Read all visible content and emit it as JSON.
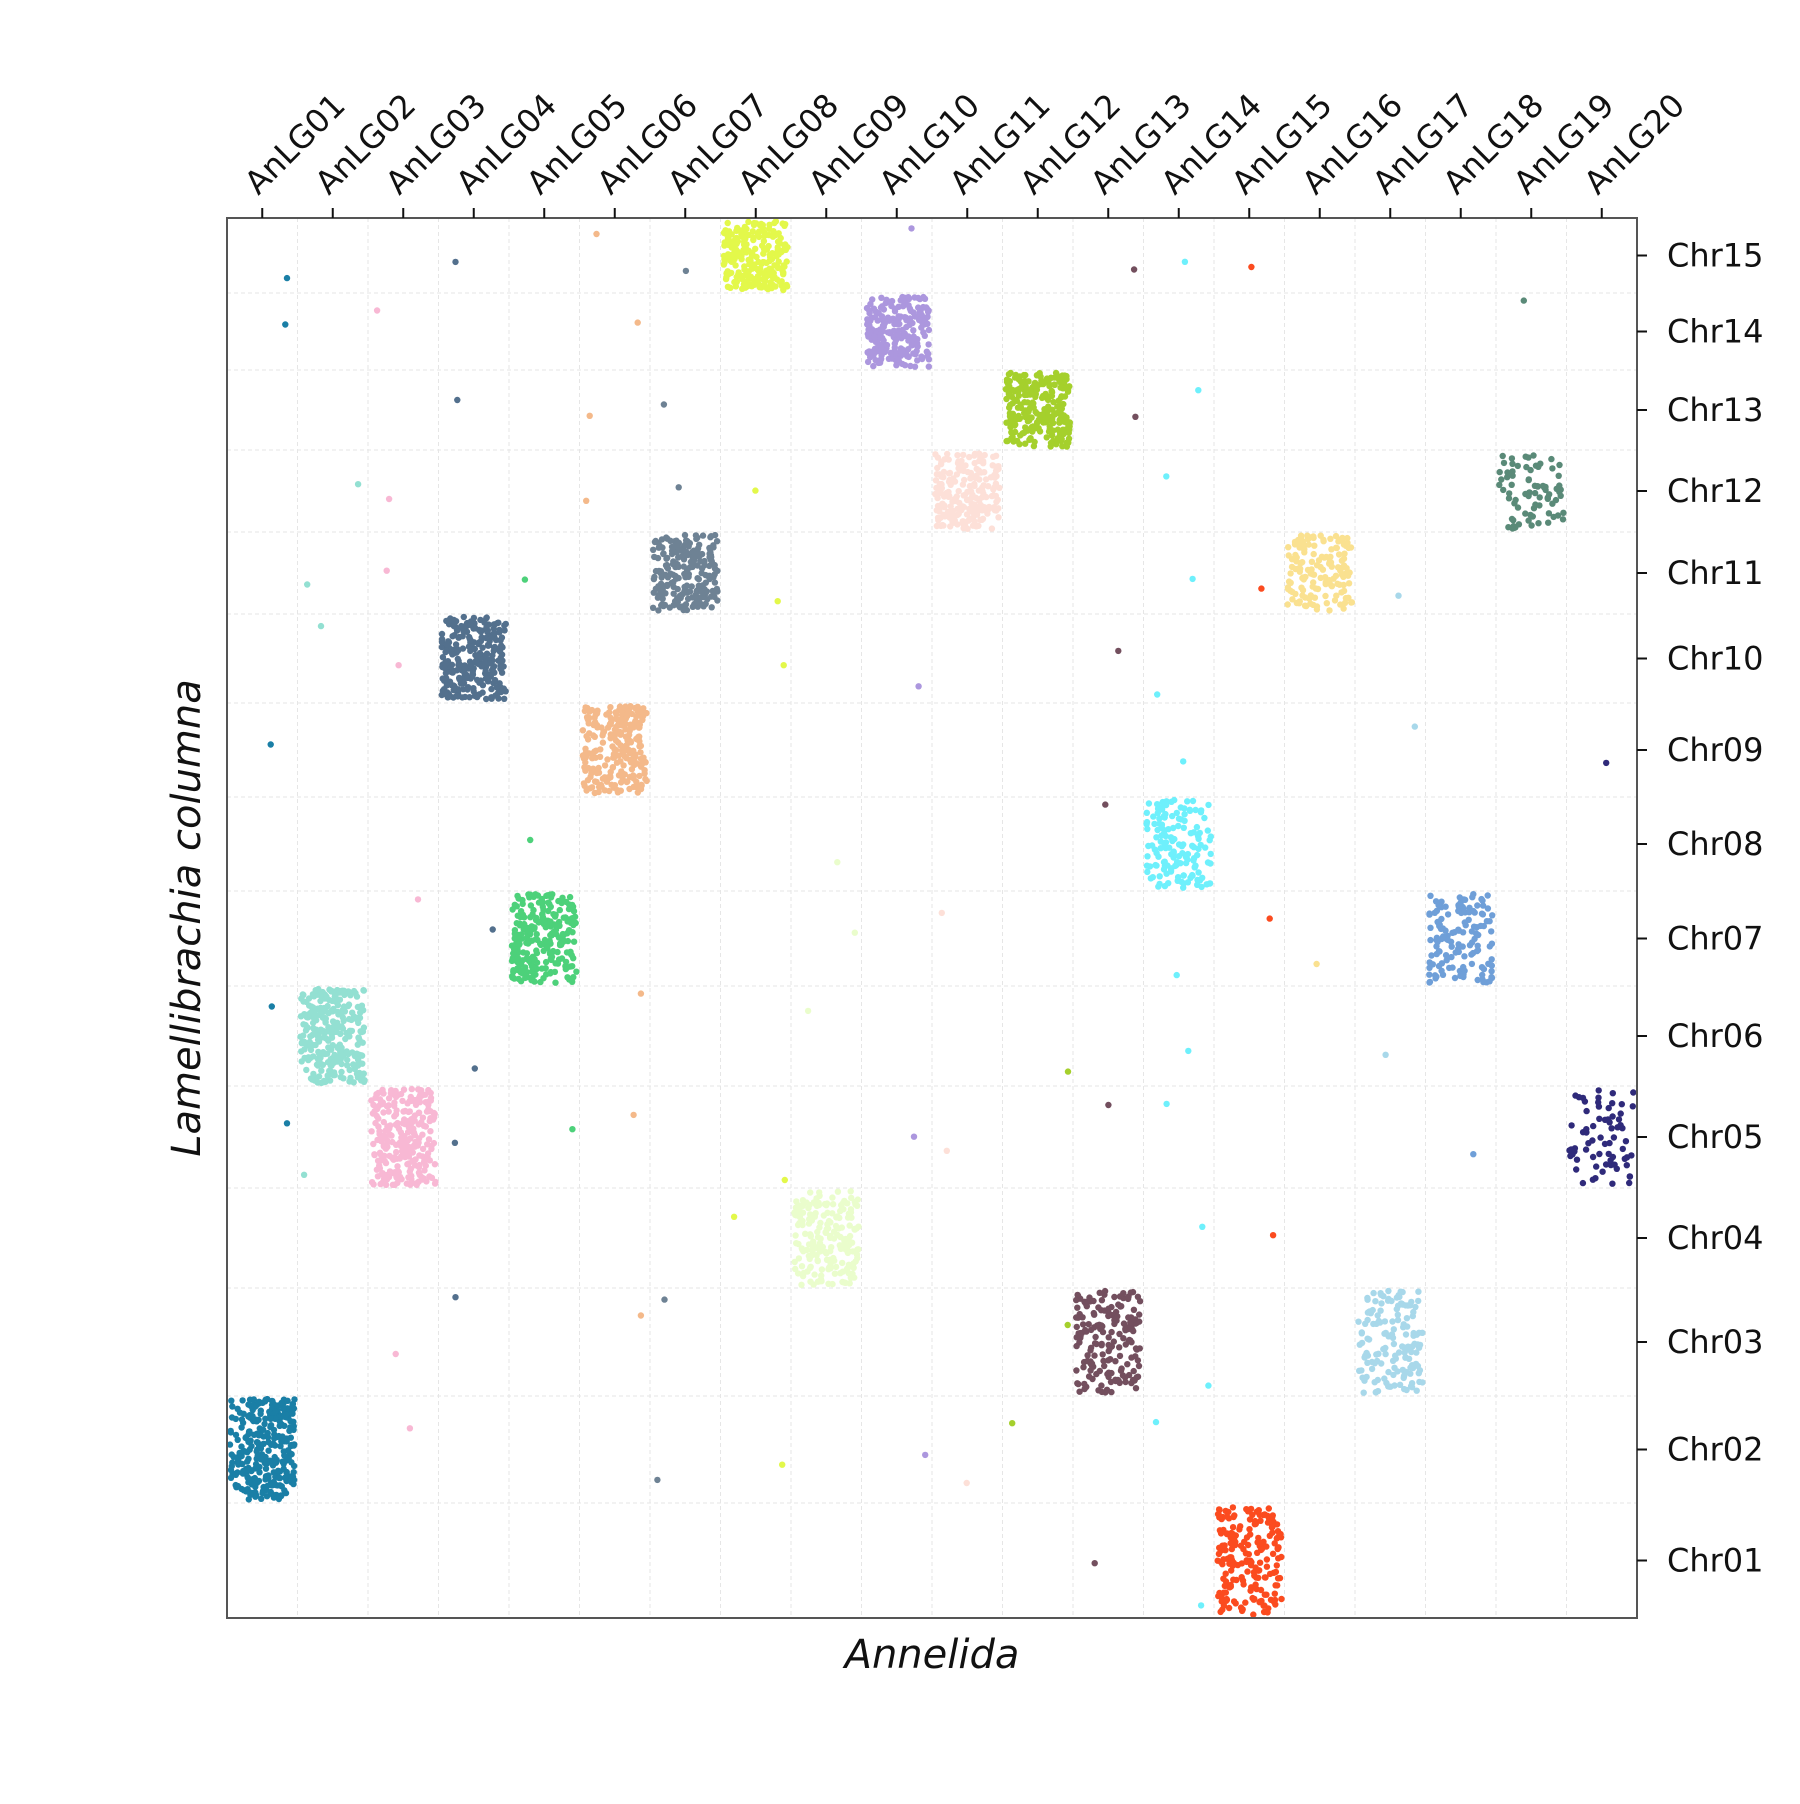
{
  "chart_data": {
    "type": "scatter",
    "title": "",
    "xlabel": "Annelida",
    "ylabel": "Lamellibrachia columna",
    "x_tick_position": "top",
    "y_tick_position": "right",
    "grid": true,
    "x_categories": [
      "AnLG01",
      "AnLG02",
      "AnLG03",
      "AnLG04",
      "AnLG05",
      "AnLG06",
      "AnLG07",
      "AnLG08",
      "AnLG09",
      "AnLG10",
      "AnLG11",
      "AnLG12",
      "AnLG13",
      "AnLG14",
      "AnLG15",
      "AnLG16",
      "AnLG17",
      "AnLG18",
      "AnLG19",
      "AnLG20"
    ],
    "y_categories": [
      "Chr01",
      "Chr02",
      "Chr03",
      "Chr04",
      "Chr05",
      "Chr06",
      "Chr07",
      "Chr08",
      "Chr09",
      "Chr10",
      "Chr11",
      "Chr12",
      "Chr13",
      "Chr14",
      "Chr15"
    ],
    "colors": {
      "AnLG01": "#1a7fa6",
      "AnLG02": "#93e0d2",
      "AnLG03": "#f8b8d4",
      "AnLG04": "#53708d",
      "AnLG05": "#4dd17a",
      "AnLG06": "#f4b98a",
      "AnLG07": "#6e8294",
      "AnLG08": "#e3f84a",
      "AnLG09": "#eafdcc",
      "AnLG10": "#ac97de",
      "AnLG11": "#fde0d8",
      "AnLG12": "#a5d02c",
      "AnLG13": "#734f5e",
      "AnLG14": "#6ef0fc",
      "AnLG15": "#fb4b1f",
      "AnLG16": "#fae190",
      "AnLG17": "#a8d8ea",
      "AnLG18": "#6f9fd8",
      "AnLG19": "#5a8a78",
      "AnLG20": "#2f2a7a"
    },
    "blocks": [
      {
        "x": "AnLG01",
        "y": "Chr02",
        "count": 300
      },
      {
        "x": "AnLG02",
        "y": "Chr06",
        "count": 280
      },
      {
        "x": "AnLG03",
        "y": "Chr05",
        "count": 260
      },
      {
        "x": "AnLG04",
        "y": "Chr10",
        "count": 270
      },
      {
        "x": "AnLG05",
        "y": "Chr07",
        "count": 240
      },
      {
        "x": "AnLG06",
        "y": "Chr09",
        "count": 240
      },
      {
        "x": "AnLG07",
        "y": "Chr11",
        "count": 220
      },
      {
        "x": "AnLG08",
        "y": "Chr15",
        "count": 230
      },
      {
        "x": "AnLG09",
        "y": "Chr04",
        "count": 200
      },
      {
        "x": "AnLG10",
        "y": "Chr14",
        "count": 220
      },
      {
        "x": "AnLG11",
        "y": "Chr12",
        "count": 210
      },
      {
        "x": "AnLG12",
        "y": "Chr13",
        "count": 260
      },
      {
        "x": "AnLG13",
        "y": "Chr03",
        "count": 180
      },
      {
        "x": "AnLG14",
        "y": "Chr08",
        "count": 150
      },
      {
        "x": "AnLG15",
        "y": "Chr01",
        "count": 200
      },
      {
        "x": "AnLG16",
        "y": "Chr11",
        "count": 150
      },
      {
        "x": "AnLG17",
        "y": "Chr03",
        "count": 150
      },
      {
        "x": "AnLG18",
        "y": "Chr07",
        "count": 140
      },
      {
        "x": "AnLG19",
        "y": "Chr12",
        "count": 80
      },
      {
        "x": "AnLG20",
        "y": "Chr05",
        "count": 70
      }
    ],
    "scattered_points": [
      {
        "x": "AnLG01",
        "y": "Chr15"
      },
      {
        "x": "AnLG01",
        "y": "Chr09"
      },
      {
        "x": "AnLG01",
        "y": "Chr06"
      },
      {
        "x": "AnLG01",
        "y": "Chr05"
      },
      {
        "x": "AnLG01",
        "y": "Chr14"
      },
      {
        "x": "AnLG02",
        "y": "Chr11"
      },
      {
        "x": "AnLG02",
        "y": "Chr10"
      },
      {
        "x": "AnLG02",
        "y": "Chr12"
      },
      {
        "x": "AnLG02",
        "y": "Chr05"
      },
      {
        "x": "AnLG03",
        "y": "Chr14"
      },
      {
        "x": "AnLG03",
        "y": "Chr12"
      },
      {
        "x": "AnLG03",
        "y": "Chr11"
      },
      {
        "x": "AnLG03",
        "y": "Chr10"
      },
      {
        "x": "AnLG03",
        "y": "Chr07"
      },
      {
        "x": "AnLG03",
        "y": "Chr03"
      },
      {
        "x": "AnLG03",
        "y": "Chr02"
      },
      {
        "x": "AnLG04",
        "y": "Chr15"
      },
      {
        "x": "AnLG04",
        "y": "Chr13"
      },
      {
        "x": "AnLG04",
        "y": "Chr07"
      },
      {
        "x": "AnLG04",
        "y": "Chr06"
      },
      {
        "x": "AnLG04",
        "y": "Chr03"
      },
      {
        "x": "AnLG04",
        "y": "Chr05"
      },
      {
        "x": "AnLG05",
        "y": "Chr11"
      },
      {
        "x": "AnLG05",
        "y": "Chr08"
      },
      {
        "x": "AnLG05",
        "y": "Chr05"
      },
      {
        "x": "AnLG06",
        "y": "Chr15"
      },
      {
        "x": "AnLG06",
        "y": "Chr14"
      },
      {
        "x": "AnLG06",
        "y": "Chr13"
      },
      {
        "x": "AnLG06",
        "y": "Chr12"
      },
      {
        "x": "AnLG06",
        "y": "Chr06"
      },
      {
        "x": "AnLG06",
        "y": "Chr05"
      },
      {
        "x": "AnLG06",
        "y": "Chr03"
      },
      {
        "x": "AnLG07",
        "y": "Chr15"
      },
      {
        "x": "AnLG07",
        "y": "Chr13"
      },
      {
        "x": "AnLG07",
        "y": "Chr12"
      },
      {
        "x": "AnLG07",
        "y": "Chr03"
      },
      {
        "x": "AnLG07",
        "y": "Chr02"
      },
      {
        "x": "AnLG08",
        "y": "Chr12"
      },
      {
        "x": "AnLG08",
        "y": "Chr11"
      },
      {
        "x": "AnLG08",
        "y": "Chr10"
      },
      {
        "x": "AnLG08",
        "y": "Chr05"
      },
      {
        "x": "AnLG08",
        "y": "Chr04"
      },
      {
        "x": "AnLG08",
        "y": "Chr02"
      },
      {
        "x": "AnLG09",
        "y": "Chr08"
      },
      {
        "x": "AnLG09",
        "y": "Chr07"
      },
      {
        "x": "AnLG09",
        "y": "Chr06"
      },
      {
        "x": "AnLG10",
        "y": "Chr15"
      },
      {
        "x": "AnLG10",
        "y": "Chr10"
      },
      {
        "x": "AnLG10",
        "y": "Chr05"
      },
      {
        "x": "AnLG10",
        "y": "Chr02"
      },
      {
        "x": "AnLG11",
        "y": "Chr07"
      },
      {
        "x": "AnLG11",
        "y": "Chr05"
      },
      {
        "x": "AnLG11",
        "y": "Chr02"
      },
      {
        "x": "AnLG12",
        "y": "Chr06"
      },
      {
        "x": "AnLG12",
        "y": "Chr03"
      },
      {
        "x": "AnLG12",
        "y": "Chr02"
      },
      {
        "x": "AnLG13",
        "y": "Chr15"
      },
      {
        "x": "AnLG13",
        "y": "Chr13"
      },
      {
        "x": "AnLG13",
        "y": "Chr10"
      },
      {
        "x": "AnLG13",
        "y": "Chr08"
      },
      {
        "x": "AnLG13",
        "y": "Chr05"
      },
      {
        "x": "AnLG13",
        "y": "Chr01"
      },
      {
        "x": "AnLG14",
        "y": "Chr15"
      },
      {
        "x": "AnLG14",
        "y": "Chr13"
      },
      {
        "x": "AnLG14",
        "y": "Chr12"
      },
      {
        "x": "AnLG14",
        "y": "Chr11"
      },
      {
        "x": "AnLG14",
        "y": "Chr10"
      },
      {
        "x": "AnLG14",
        "y": "Chr09"
      },
      {
        "x": "AnLG14",
        "y": "Chr07"
      },
      {
        "x": "AnLG14",
        "y": "Chr06"
      },
      {
        "x": "AnLG14",
        "y": "Chr05"
      },
      {
        "x": "AnLG14",
        "y": "Chr04"
      },
      {
        "x": "AnLG14",
        "y": "Chr03"
      },
      {
        "x": "AnLG14",
        "y": "Chr02"
      },
      {
        "x": "AnLG14",
        "y": "Chr01"
      },
      {
        "x": "AnLG15",
        "y": "Chr15"
      },
      {
        "x": "AnLG15",
        "y": "Chr11"
      },
      {
        "x": "AnLG15",
        "y": "Chr07"
      },
      {
        "x": "AnLG15",
        "y": "Chr04"
      },
      {
        "x": "AnLG16",
        "y": "Chr07"
      },
      {
        "x": "AnLG17",
        "y": "Chr11"
      },
      {
        "x": "AnLG17",
        "y": "Chr09"
      },
      {
        "x": "AnLG17",
        "y": "Chr06"
      },
      {
        "x": "AnLG18",
        "y": "Chr07"
      },
      {
        "x": "AnLG18",
        "y": "Chr05"
      },
      {
        "x": "AnLG19",
        "y": "Chr14"
      },
      {
        "x": "AnLG20",
        "y": "Chr09"
      }
    ]
  }
}
